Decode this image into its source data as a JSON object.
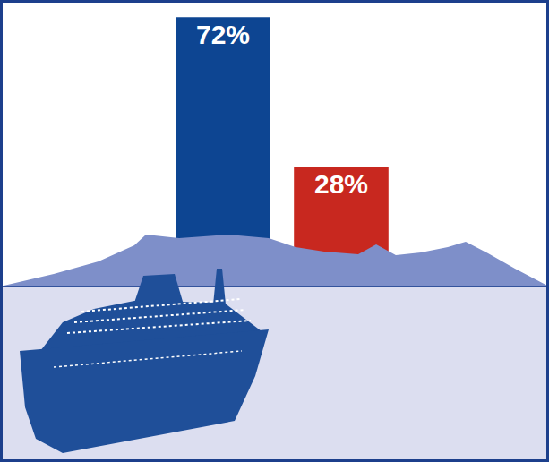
{
  "chart_data": {
    "type": "bar",
    "categories": [
      null,
      null
    ],
    "values": [
      72,
      28
    ],
    "value_labels": [
      "72%",
      "28%"
    ],
    "colors": [
      "#0d4592",
      "#c8281f"
    ],
    "ylim": [
      0,
      75
    ],
    "data_labels": true,
    "tick_labels": false,
    "grid": false
  }
}
